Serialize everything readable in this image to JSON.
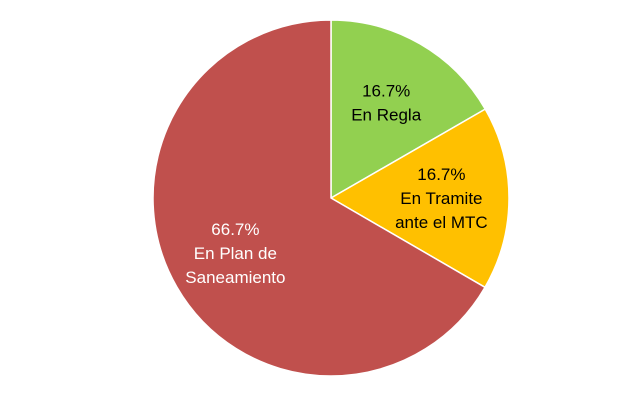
{
  "chart_data": {
    "type": "pie",
    "title": "",
    "slices": [
      {
        "label_lines": [
          "En Regla"
        ],
        "percent_label": "16.7%",
        "value": 16.7,
        "color": "#92D050",
        "text_color": "#000000"
      },
      {
        "label_lines": [
          "En Tramite",
          "ante el MTC"
        ],
        "percent_label": "16.7%",
        "value": 16.7,
        "color": "#FFC000",
        "text_color": "#000000"
      },
      {
        "label_lines": [
          "En Plan de",
          "Saneamiento"
        ],
        "percent_label": "66.7%",
        "value": 66.7,
        "color": "#C0504D",
        "text_color": "#ffffff"
      }
    ],
    "start_angle_deg": 0,
    "direction": "clockwise",
    "legend": "none"
  }
}
